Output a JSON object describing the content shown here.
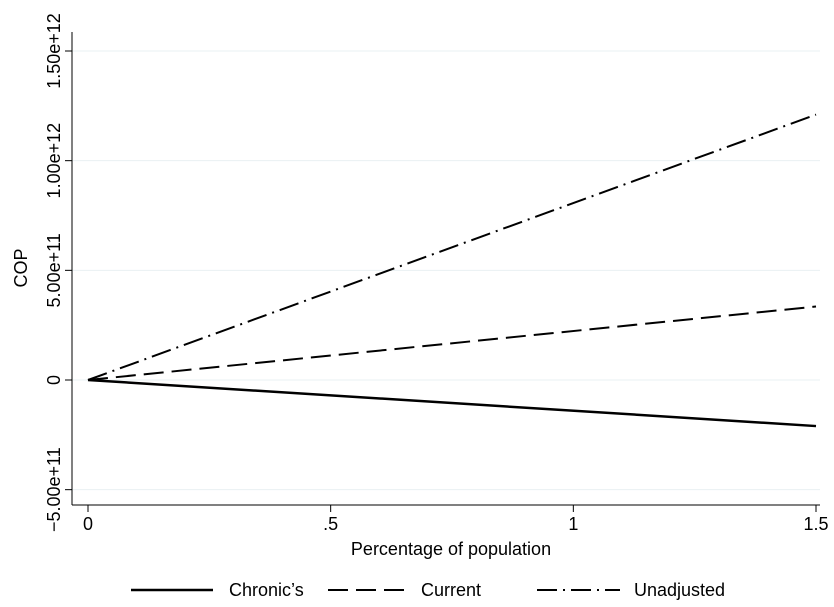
{
  "chart_data": {
    "type": "line",
    "xlabel": "Percentage of population",
    "ylabel": "COP",
    "xlim": [
      0,
      1.5
    ],
    "ylim": [
      -500000000000,
      1500000000000
    ],
    "x_ticks": [
      0,
      0.5,
      1,
      1.5
    ],
    "x_tick_labels": [
      "0",
      ".5",
      "1",
      "1.5"
    ],
    "y_ticks": [
      -500000000000,
      0,
      500000000000,
      1000000000000,
      1500000000000
    ],
    "y_tick_labels": [
      "−5.00e+11",
      "0",
      "5.00e+11",
      "1.00e+12",
      "1.50e+12"
    ],
    "grid": true,
    "legend_position": "bottom",
    "series": [
      {
        "name": "Chronic’s",
        "style": "solid",
        "color": "#000000",
        "x": [
          0,
          1.5
        ],
        "y": [
          0,
          -210000000000
        ]
      },
      {
        "name": "Current",
        "style": "dash",
        "color": "#000000",
        "x": [
          0,
          1.5
        ],
        "y": [
          0,
          335000000000
        ]
      },
      {
        "name": "Unadjusted",
        "style": "dashdot",
        "color": "#000000",
        "x": [
          0,
          1.5
        ],
        "y": [
          0,
          1210000000000
        ]
      }
    ]
  }
}
